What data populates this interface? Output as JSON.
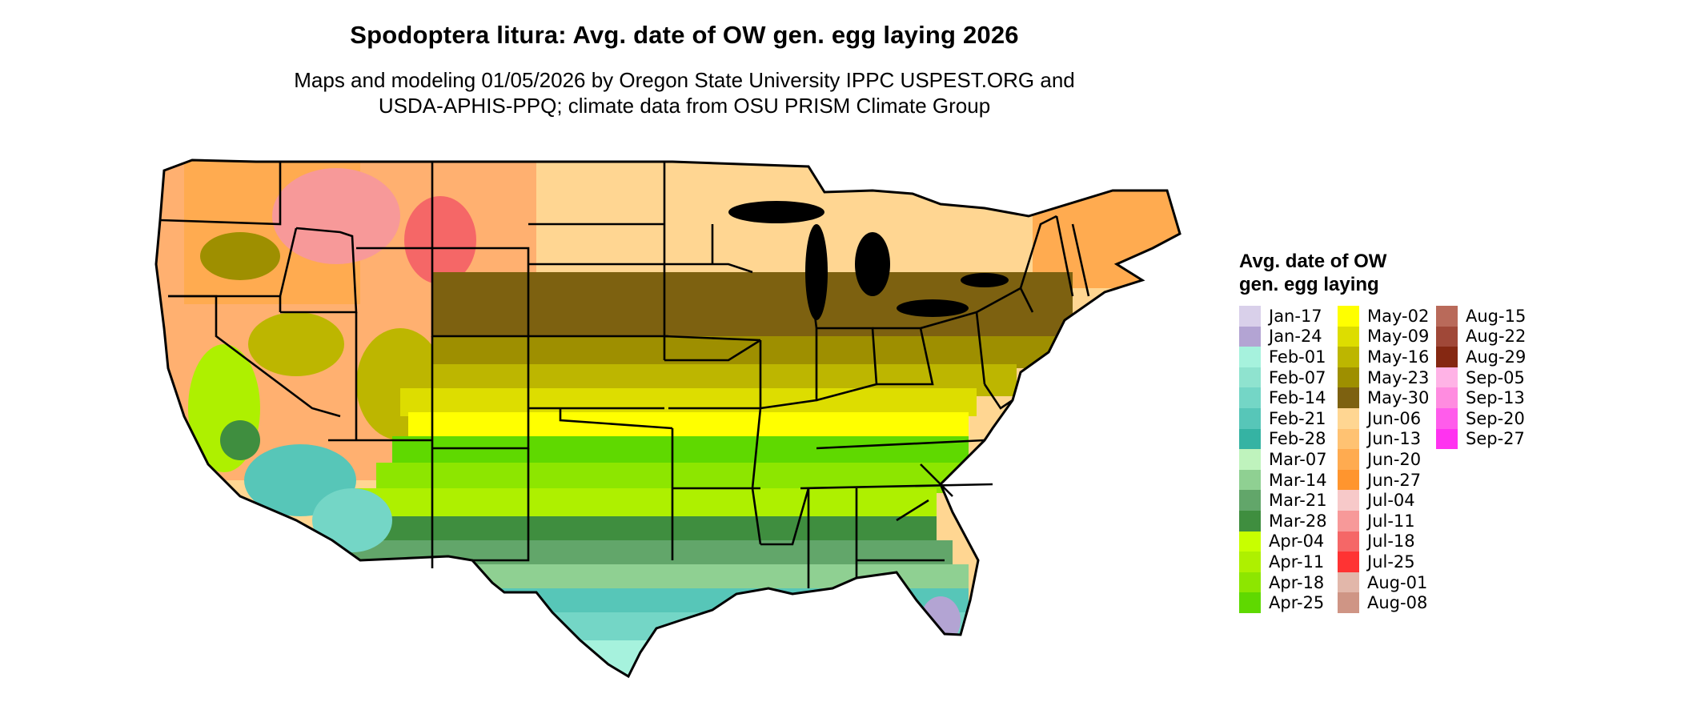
{
  "header": {
    "title": "Spodoptera litura: Avg. date of OW gen. egg laying 2026",
    "subtitle_line1": "Maps and modeling 01/05/2026 by Oregon State University IPPC USPEST.ORG and",
    "subtitle_line2": "USDA-APHIS-PPQ; climate data from OSU PRISM Climate Group"
  },
  "legend": {
    "title_line1": "Avg. date of OW",
    "title_line2": "gen. egg laying",
    "columns": [
      [
        {
          "label": "Jan-17",
          "color": "#d9d0ea"
        },
        {
          "label": "Jan-24",
          "color": "#b3a4d3"
        },
        {
          "label": "Feb-01",
          "color": "#a6f2dd"
        },
        {
          "label": "Feb-07",
          "color": "#8fe3cf"
        },
        {
          "label": "Feb-14",
          "color": "#74d6c6"
        },
        {
          "label": "Feb-21",
          "color": "#57c6b8"
        },
        {
          "label": "Feb-28",
          "color": "#35b3a3"
        },
        {
          "label": "Mar-07",
          "color": "#bff3bd"
        },
        {
          "label": "Mar-14",
          "color": "#8fd092"
        },
        {
          "label": "Mar-21",
          "color": "#62a66a"
        },
        {
          "label": "Mar-28",
          "color": "#3f8e3f"
        },
        {
          "label": "Apr-04",
          "color": "#c8ff00"
        },
        {
          "label": "Apr-11",
          "color": "#aef000"
        },
        {
          "label": "Apr-18",
          "color": "#8de600"
        },
        {
          "label": "Apr-25",
          "color": "#5fd900"
        }
      ],
      [
        {
          "label": "May-02",
          "color": "#ffff00"
        },
        {
          "label": "May-09",
          "color": "#dddd00"
        },
        {
          "label": "May-16",
          "color": "#bdb600"
        },
        {
          "label": "May-23",
          "color": "#9e8f00"
        },
        {
          "label": "May-30",
          "color": "#7d6110"
        },
        {
          "label": "Jun-06",
          "color": "#ffd692"
        },
        {
          "label": "Jun-13",
          "color": "#ffc272"
        },
        {
          "label": "Jun-20",
          "color": "#ffab50"
        },
        {
          "label": "Jun-27",
          "color": "#ff952e"
        },
        {
          "label": "Jul-04",
          "color": "#f7c9c9"
        },
        {
          "label": "Jul-11",
          "color": "#f79999"
        },
        {
          "label": "Jul-18",
          "color": "#f56767"
        },
        {
          "label": "Jul-25",
          "color": "#ff3333"
        },
        {
          "label": "Aug-01",
          "color": "#e2b7aa"
        },
        {
          "label": "Aug-08",
          "color": "#cf9585"
        }
      ],
      [
        {
          "label": "Aug-15",
          "color": "#b96a5a"
        },
        {
          "label": "Aug-22",
          "color": "#a04838"
        },
        {
          "label": "Aug-29",
          "color": "#852812"
        },
        {
          "label": "Sep-05",
          "color": "#ffb3e6"
        },
        {
          "label": "Sep-13",
          "color": "#ff8ce0"
        },
        {
          "label": "Sep-20",
          "color": "#ff5ceb"
        },
        {
          "label": "Sep-27",
          "color": "#ff33f0"
        }
      ]
    ]
  }
}
